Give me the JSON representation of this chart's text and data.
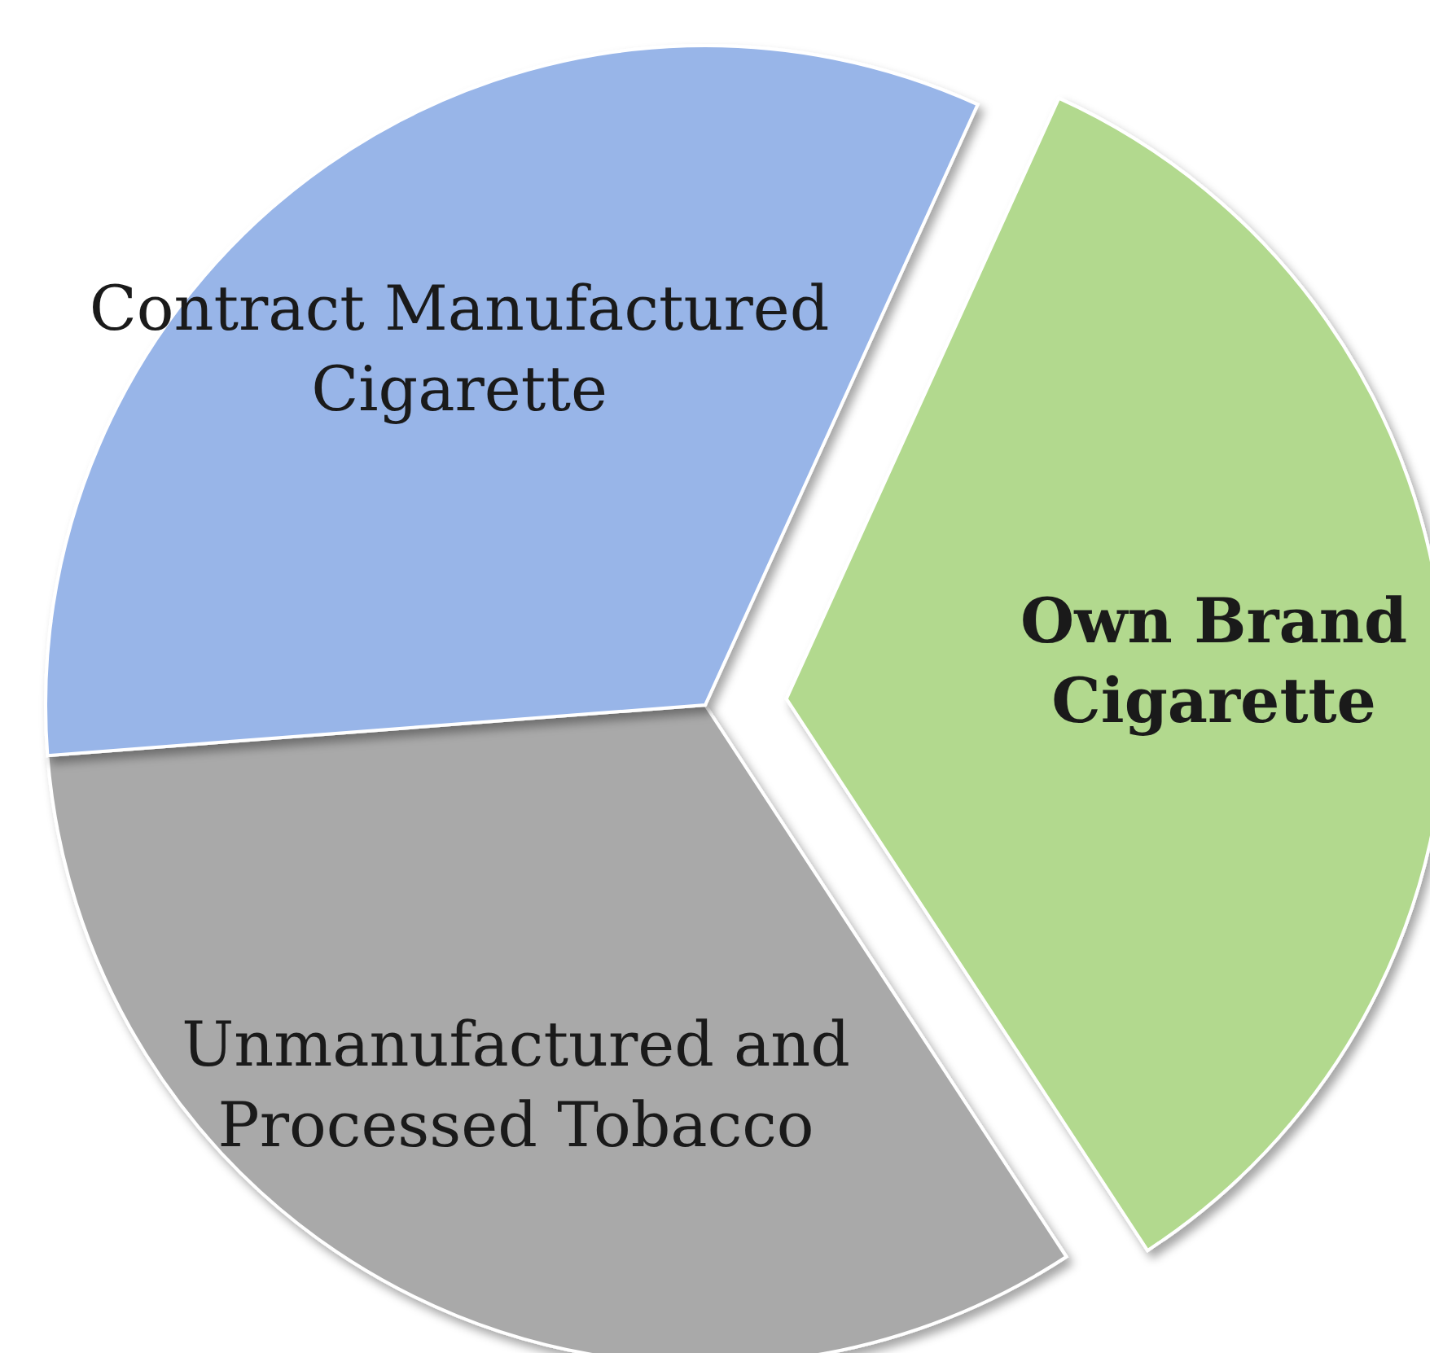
{
  "chart_data": {
    "type": "pie",
    "categories": [
      "Own Brand Cigarette",
      "Unmanufactured and Processed Tobacco",
      "Contract Manufactured Cigarette"
    ],
    "values": [
      34,
      33,
      33
    ],
    "colors": [
      "#b2d98e",
      "#a9a9a9",
      "#98b5e8"
    ]
  }
}
